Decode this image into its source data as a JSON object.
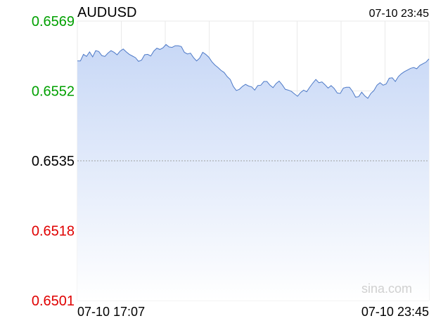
{
  "chart_data": {
    "type": "area",
    "title": "AUDUSD",
    "last_update": "07-10 23:45",
    "watermark": "sina.com",
    "x_start_label": "07-10 17:07",
    "x_end_label": "07-10 23:45",
    "xlabel": "",
    "ylabel": "",
    "ylim": [
      0.6501,
      0.6569
    ],
    "reference_price": 0.6535,
    "ytick_labels": [
      "0.6569",
      "0.6552",
      "0.6535",
      "0.6518",
      "0.6501"
    ],
    "grid": true,
    "colors": {
      "line": "#4d79c7",
      "fill_top": "#c8d8f6",
      "fill_bottom": "#ffffff",
      "up": "#00a000",
      "down": "#e00000",
      "neutral": "#000000",
      "grid": "#eaeaea",
      "reference_line": "#a0a0a0"
    },
    "series": [
      {
        "values": [
          0.65593,
          0.65593,
          0.65609,
          0.65604,
          0.65615,
          0.65603,
          0.65618,
          0.65616,
          0.65606,
          0.65604,
          0.65612,
          0.65618,
          0.65614,
          0.65608,
          0.65617,
          0.65622,
          0.65615,
          0.65609,
          0.65605,
          0.65601,
          0.65592,
          0.65595,
          0.65608,
          0.65609,
          0.65605,
          0.65617,
          0.65624,
          0.65621,
          0.65625,
          0.65633,
          0.65627,
          0.65626,
          0.6563,
          0.6563,
          0.65628,
          0.65614,
          0.6561,
          0.65612,
          0.65601,
          0.65593,
          0.656,
          0.65614,
          0.65609,
          0.65602,
          0.65591,
          0.65583,
          0.65577,
          0.6557,
          0.65565,
          0.65555,
          0.65548,
          0.65531,
          0.65521,
          0.65524,
          0.65531,
          0.65536,
          0.65532,
          0.6553,
          0.65522,
          0.65533,
          0.65534,
          0.65543,
          0.65543,
          0.65534,
          0.65528,
          0.65538,
          0.65544,
          0.65535,
          0.65524,
          0.65522,
          0.65519,
          0.65513,
          0.65507,
          0.65516,
          0.65522,
          0.65518,
          0.65529,
          0.65539,
          0.65548,
          0.6554,
          0.65542,
          0.65535,
          0.65527,
          0.65533,
          0.65526,
          0.65515,
          0.65514,
          0.65527,
          0.65529,
          0.65529,
          0.65519,
          0.65505,
          0.65506,
          0.65517,
          0.65508,
          0.65502,
          0.65514,
          0.65521,
          0.65534,
          0.6554,
          0.65534,
          0.65537,
          0.65551,
          0.65552,
          0.65543,
          0.65555,
          0.65562,
          0.65567,
          0.65571,
          0.65575,
          0.65577,
          0.65574,
          0.65582,
          0.65586,
          0.6559,
          0.65598
        ]
      }
    ]
  }
}
